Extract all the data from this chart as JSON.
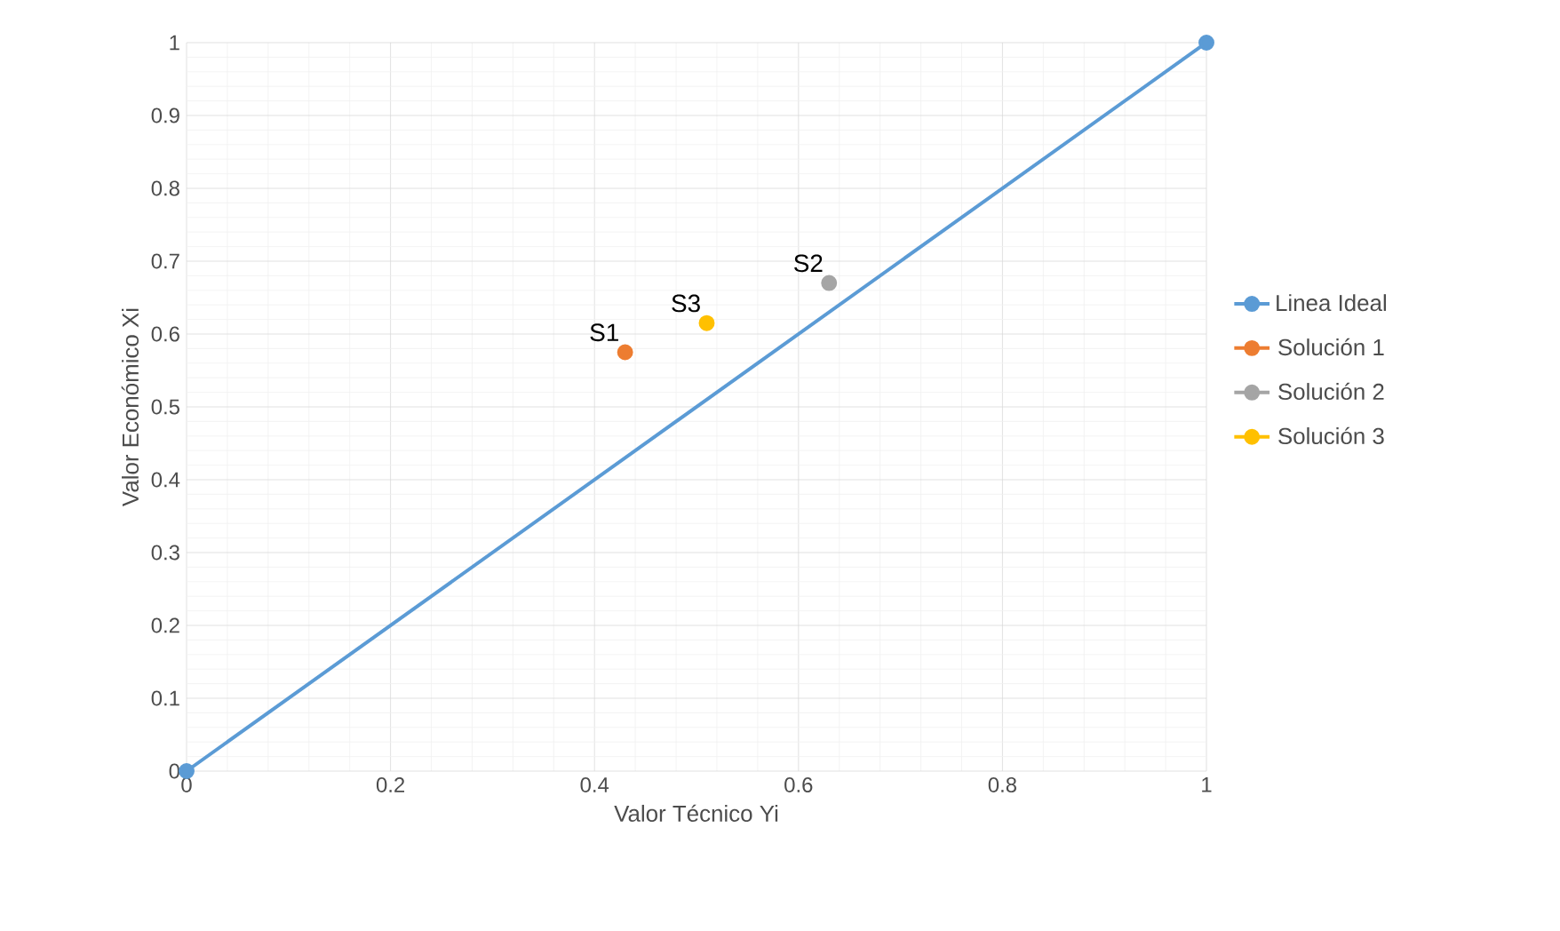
{
  "chart_data": {
    "type": "line",
    "xlabel": "Valor Técnico Yi",
    "ylabel": "Valor Económico Xi",
    "series": [
      {
        "name": "Linea Ideal",
        "color": "#5b9bd5",
        "x": [
          0,
          1
        ],
        "values": [
          0,
          1
        ]
      },
      {
        "name": "Solución 1",
        "color": "#ed7d31",
        "x": [
          0.43
        ],
        "values": [
          0.575
        ]
      },
      {
        "name": "Solución 2",
        "color": "#a5a5a5",
        "x": [
          0.63
        ],
        "values": [
          0.67
        ]
      },
      {
        "name": "Solución 3",
        "color": "#ffc000",
        "x": [
          0.51
        ],
        "values": [
          0.615
        ]
      }
    ],
    "annotations": [
      {
        "text": "S1",
        "x": 0.43,
        "y": 0.575
      },
      {
        "text": "S2",
        "x": 0.63,
        "y": 0.67
      },
      {
        "text": "S3",
        "x": 0.51,
        "y": 0.615
      }
    ],
    "xlim": [
      0,
      1
    ],
    "ylim": [
      0,
      1
    ],
    "xticks": [
      0,
      0.2,
      0.4,
      0.6,
      0.8,
      1
    ],
    "yticks": [
      0,
      0.1,
      0.2,
      0.3,
      0.4,
      0.5,
      0.6,
      0.7,
      0.8,
      0.9,
      1
    ],
    "grid": true,
    "legend": "right",
    "marker": "circle",
    "line_style": "solid"
  }
}
